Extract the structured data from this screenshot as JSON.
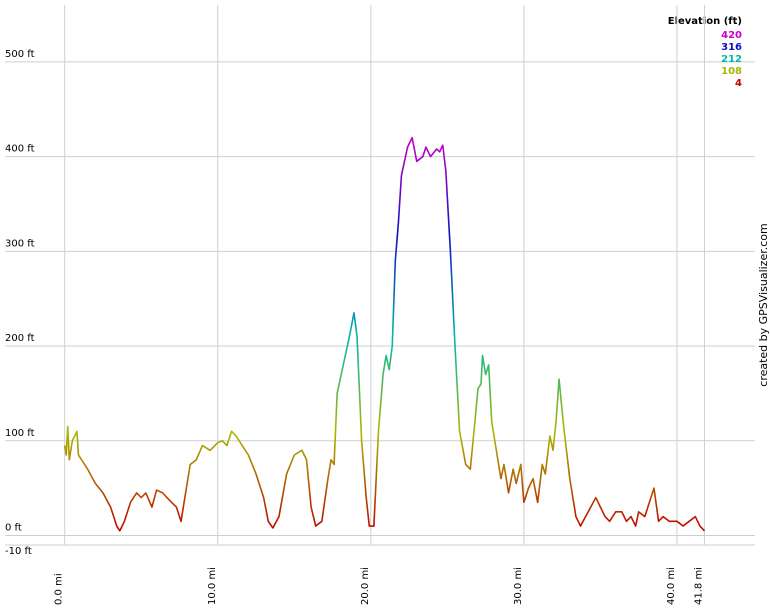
{
  "chart_data": {
    "type": "line",
    "legend_title": "Elevation (ft)",
    "credit": "created by GPSVisualizer.com",
    "color_scale": [
      {
        "value": 420,
        "color": "#c800c8"
      },
      {
        "value": 316,
        "color": "#1010c0"
      },
      {
        "value": 212,
        "color": "#00b8a8"
      },
      {
        "value": 108,
        "color": "#a8b800"
      },
      {
        "value": 4,
        "color": "#c00000"
      }
    ],
    "x": [
      0.0,
      0.1,
      0.2,
      0.3,
      0.5,
      0.8,
      0.9,
      1.1,
      1.5,
      2.0,
      2.5,
      3.0,
      3.4,
      3.6,
      3.9,
      4.3,
      4.7,
      5.0,
      5.3,
      5.7,
      6.0,
      6.4,
      6.8,
      7.3,
      7.6,
      7.8,
      8.2,
      8.6,
      9.0,
      9.5,
      10.0,
      10.3,
      10.6,
      10.9,
      11.2,
      11.6,
      12.0,
      12.5,
      13.0,
      13.3,
      13.6,
      14.0,
      14.5,
      15.0,
      15.5,
      15.8,
      16.1,
      16.4,
      16.8,
      17.2,
      17.4,
      17.6,
      17.8,
      18.2,
      18.6,
      18.9,
      19.1,
      19.4,
      19.7,
      19.9,
      20.2,
      20.5,
      20.8,
      21.0,
      21.2,
      21.4,
      21.6,
      21.8,
      22.0,
      22.4,
      22.7,
      23.0,
      23.4,
      23.6,
      23.9,
      24.3,
      24.5,
      24.7,
      24.9,
      25.2,
      25.5,
      25.8,
      26.2,
      26.5,
      26.8,
      27.0,
      27.2,
      27.3,
      27.5,
      27.7,
      27.9,
      28.2,
      28.5,
      28.7,
      29.0,
      29.3,
      29.5,
      29.8,
      30.0,
      30.3,
      30.6,
      30.9,
      31.2,
      31.4,
      31.7,
      31.9,
      32.1,
      32.3,
      32.6,
      33.0,
      33.4,
      33.7,
      34.2,
      34.7,
      35.0,
      35.3,
      35.6,
      36.0,
      36.4,
      36.7,
      37.0,
      37.3,
      37.5,
      37.9,
      38.2,
      38.5,
      38.8,
      39.1,
      39.5,
      40.0,
      40.4,
      40.8,
      41.2,
      41.5,
      41.8
    ],
    "values": [
      95,
      85,
      115,
      80,
      100,
      110,
      85,
      80,
      70,
      55,
      45,
      30,
      10,
      5,
      15,
      35,
      45,
      40,
      45,
      30,
      48,
      45,
      38,
      30,
      15,
      35,
      75,
      80,
      95,
      90,
      98,
      100,
      95,
      110,
      105,
      95,
      85,
      65,
      40,
      15,
      8,
      20,
      65,
      85,
      90,
      80,
      30,
      10,
      15,
      60,
      80,
      75,
      150,
      180,
      210,
      235,
      210,
      100,
      40,
      10,
      10,
      110,
      170,
      190,
      175,
      200,
      290,
      330,
      380,
      410,
      420,
      395,
      400,
      410,
      400,
      408,
      405,
      412,
      385,
      300,
      200,
      110,
      75,
      70,
      120,
      155,
      160,
      190,
      170,
      180,
      120,
      90,
      60,
      75,
      45,
      70,
      55,
      75,
      35,
      50,
      60,
      35,
      75,
      65,
      105,
      90,
      120,
      165,
      115,
      60,
      20,
      10,
      25,
      40,
      30,
      20,
      15,
      25,
      25,
      15,
      20,
      10,
      25,
      20,
      35,
      50,
      15,
      20,
      15,
      15,
      10,
      15,
      20,
      10,
      5
    ],
    "xlim": [
      -3.9,
      45.1
    ],
    "ylim": [
      -10,
      560
    ],
    "xticks": [
      {
        "value": 0,
        "label": "0.0 mi"
      },
      {
        "value": 10,
        "label": "10.0 mi"
      },
      {
        "value": 20,
        "label": "20.0 mi"
      },
      {
        "value": 30,
        "label": "30.0 mi"
      },
      {
        "value": 40,
        "label": "40.0 mi"
      },
      {
        "value": 41.8,
        "label": "41.8 mi"
      }
    ],
    "yticks": [
      {
        "value": -10,
        "label": "-10 ft"
      },
      {
        "value": 0,
        "label": "0 ft"
      },
      {
        "value": 100,
        "label": "100 ft"
      },
      {
        "value": 200,
        "label": "200 ft"
      },
      {
        "value": 300,
        "label": "300 ft"
      },
      {
        "value": 400,
        "label": "400 ft"
      },
      {
        "value": 500,
        "label": "500 ft"
      }
    ],
    "grid": true
  }
}
